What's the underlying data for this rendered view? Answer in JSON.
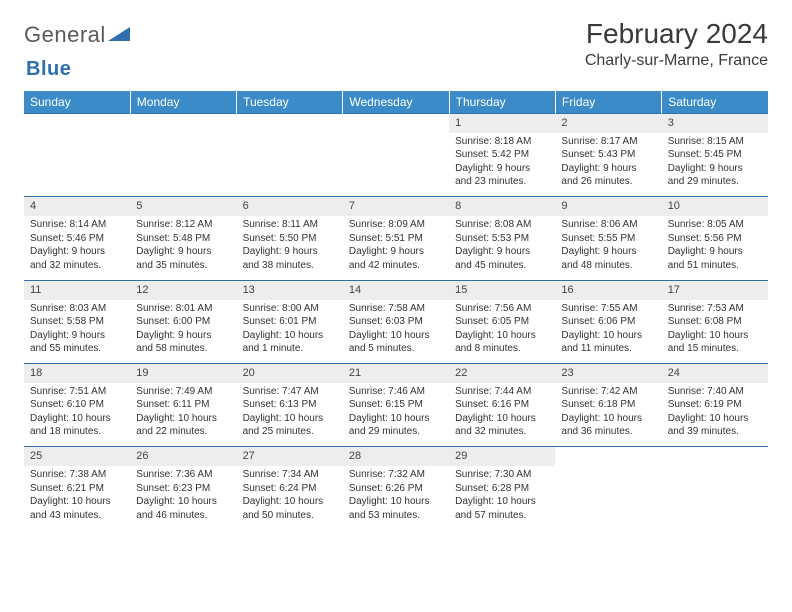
{
  "logo": {
    "word1": "General",
    "word2": "Blue"
  },
  "title": "February 2024",
  "location": "Charly-sur-Marne, France",
  "colors": {
    "header_bg": "#3b8bc8",
    "header_text": "#ffffff",
    "border": "#2f6fae",
    "daynum_bg": "#ededed",
    "body_text": "#333333",
    "logo_gray": "#5a5a5a",
    "logo_blue": "#2f6fae"
  },
  "typography": {
    "title_fontsize": 28,
    "location_fontsize": 16,
    "dayheader_fontsize": 12,
    "daynum_fontsize": 11,
    "detail_fontsize": 10
  },
  "day_headers": [
    "Sunday",
    "Monday",
    "Tuesday",
    "Wednesday",
    "Thursday",
    "Friday",
    "Saturday"
  ],
  "weeks": [
    [
      null,
      null,
      null,
      null,
      {
        "n": "1",
        "sr": "Sunrise: 8:18 AM",
        "ss": "Sunset: 5:42 PM",
        "d1": "Daylight: 9 hours",
        "d2": "and 23 minutes."
      },
      {
        "n": "2",
        "sr": "Sunrise: 8:17 AM",
        "ss": "Sunset: 5:43 PM",
        "d1": "Daylight: 9 hours",
        "d2": "and 26 minutes."
      },
      {
        "n": "3",
        "sr": "Sunrise: 8:15 AM",
        "ss": "Sunset: 5:45 PM",
        "d1": "Daylight: 9 hours",
        "d2": "and 29 minutes."
      }
    ],
    [
      {
        "n": "4",
        "sr": "Sunrise: 8:14 AM",
        "ss": "Sunset: 5:46 PM",
        "d1": "Daylight: 9 hours",
        "d2": "and 32 minutes."
      },
      {
        "n": "5",
        "sr": "Sunrise: 8:12 AM",
        "ss": "Sunset: 5:48 PM",
        "d1": "Daylight: 9 hours",
        "d2": "and 35 minutes."
      },
      {
        "n": "6",
        "sr": "Sunrise: 8:11 AM",
        "ss": "Sunset: 5:50 PM",
        "d1": "Daylight: 9 hours",
        "d2": "and 38 minutes."
      },
      {
        "n": "7",
        "sr": "Sunrise: 8:09 AM",
        "ss": "Sunset: 5:51 PM",
        "d1": "Daylight: 9 hours",
        "d2": "and 42 minutes."
      },
      {
        "n": "8",
        "sr": "Sunrise: 8:08 AM",
        "ss": "Sunset: 5:53 PM",
        "d1": "Daylight: 9 hours",
        "d2": "and 45 minutes."
      },
      {
        "n": "9",
        "sr": "Sunrise: 8:06 AM",
        "ss": "Sunset: 5:55 PM",
        "d1": "Daylight: 9 hours",
        "d2": "and 48 minutes."
      },
      {
        "n": "10",
        "sr": "Sunrise: 8:05 AM",
        "ss": "Sunset: 5:56 PM",
        "d1": "Daylight: 9 hours",
        "d2": "and 51 minutes."
      }
    ],
    [
      {
        "n": "11",
        "sr": "Sunrise: 8:03 AM",
        "ss": "Sunset: 5:58 PM",
        "d1": "Daylight: 9 hours",
        "d2": "and 55 minutes."
      },
      {
        "n": "12",
        "sr": "Sunrise: 8:01 AM",
        "ss": "Sunset: 6:00 PM",
        "d1": "Daylight: 9 hours",
        "d2": "and 58 minutes."
      },
      {
        "n": "13",
        "sr": "Sunrise: 8:00 AM",
        "ss": "Sunset: 6:01 PM",
        "d1": "Daylight: 10 hours",
        "d2": "and 1 minute."
      },
      {
        "n": "14",
        "sr": "Sunrise: 7:58 AM",
        "ss": "Sunset: 6:03 PM",
        "d1": "Daylight: 10 hours",
        "d2": "and 5 minutes."
      },
      {
        "n": "15",
        "sr": "Sunrise: 7:56 AM",
        "ss": "Sunset: 6:05 PM",
        "d1": "Daylight: 10 hours",
        "d2": "and 8 minutes."
      },
      {
        "n": "16",
        "sr": "Sunrise: 7:55 AM",
        "ss": "Sunset: 6:06 PM",
        "d1": "Daylight: 10 hours",
        "d2": "and 11 minutes."
      },
      {
        "n": "17",
        "sr": "Sunrise: 7:53 AM",
        "ss": "Sunset: 6:08 PM",
        "d1": "Daylight: 10 hours",
        "d2": "and 15 minutes."
      }
    ],
    [
      {
        "n": "18",
        "sr": "Sunrise: 7:51 AM",
        "ss": "Sunset: 6:10 PM",
        "d1": "Daylight: 10 hours",
        "d2": "and 18 minutes."
      },
      {
        "n": "19",
        "sr": "Sunrise: 7:49 AM",
        "ss": "Sunset: 6:11 PM",
        "d1": "Daylight: 10 hours",
        "d2": "and 22 minutes."
      },
      {
        "n": "20",
        "sr": "Sunrise: 7:47 AM",
        "ss": "Sunset: 6:13 PM",
        "d1": "Daylight: 10 hours",
        "d2": "and 25 minutes."
      },
      {
        "n": "21",
        "sr": "Sunrise: 7:46 AM",
        "ss": "Sunset: 6:15 PM",
        "d1": "Daylight: 10 hours",
        "d2": "and 29 minutes."
      },
      {
        "n": "22",
        "sr": "Sunrise: 7:44 AM",
        "ss": "Sunset: 6:16 PM",
        "d1": "Daylight: 10 hours",
        "d2": "and 32 minutes."
      },
      {
        "n": "23",
        "sr": "Sunrise: 7:42 AM",
        "ss": "Sunset: 6:18 PM",
        "d1": "Daylight: 10 hours",
        "d2": "and 36 minutes."
      },
      {
        "n": "24",
        "sr": "Sunrise: 7:40 AM",
        "ss": "Sunset: 6:19 PM",
        "d1": "Daylight: 10 hours",
        "d2": "and 39 minutes."
      }
    ],
    [
      {
        "n": "25",
        "sr": "Sunrise: 7:38 AM",
        "ss": "Sunset: 6:21 PM",
        "d1": "Daylight: 10 hours",
        "d2": "and 43 minutes."
      },
      {
        "n": "26",
        "sr": "Sunrise: 7:36 AM",
        "ss": "Sunset: 6:23 PM",
        "d1": "Daylight: 10 hours",
        "d2": "and 46 minutes."
      },
      {
        "n": "27",
        "sr": "Sunrise: 7:34 AM",
        "ss": "Sunset: 6:24 PM",
        "d1": "Daylight: 10 hours",
        "d2": "and 50 minutes."
      },
      {
        "n": "28",
        "sr": "Sunrise: 7:32 AM",
        "ss": "Sunset: 6:26 PM",
        "d1": "Daylight: 10 hours",
        "d2": "and 53 minutes."
      },
      {
        "n": "29",
        "sr": "Sunrise: 7:30 AM",
        "ss": "Sunset: 6:28 PM",
        "d1": "Daylight: 10 hours",
        "d2": "and 57 minutes."
      },
      null,
      null
    ]
  ]
}
